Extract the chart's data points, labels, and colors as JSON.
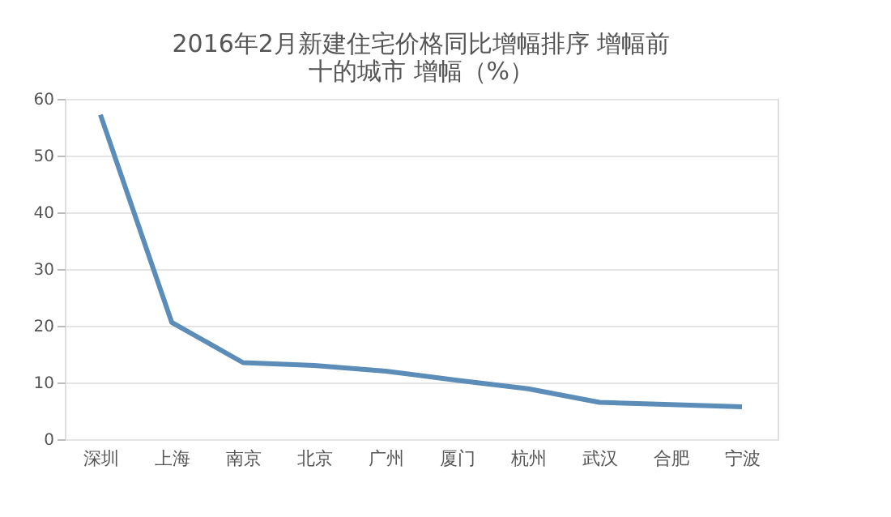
{
  "chart_data": {
    "type": "line",
    "title": "2016年2月新建住宅价格同比增幅排序 增幅前十的城市 增幅（%）",
    "categories": [
      "深圳",
      "上海",
      "南京",
      "北京",
      "广州",
      "厦门",
      "杭州",
      "武汉",
      "合肥",
      "宁波"
    ],
    "series": [
      {
        "color": "#5b8db8",
        "values": [
          57.2,
          20.6,
          13.5,
          13.0,
          12.0,
          10.4,
          8.9,
          6.5,
          6.1,
          5.7
        ]
      }
    ],
    "ylim": [
      0,
      60
    ],
    "yticks": [
      0,
      10,
      20,
      30,
      40,
      50,
      60
    ],
    "grid": "y",
    "marker": "none",
    "line_style": "solid"
  }
}
